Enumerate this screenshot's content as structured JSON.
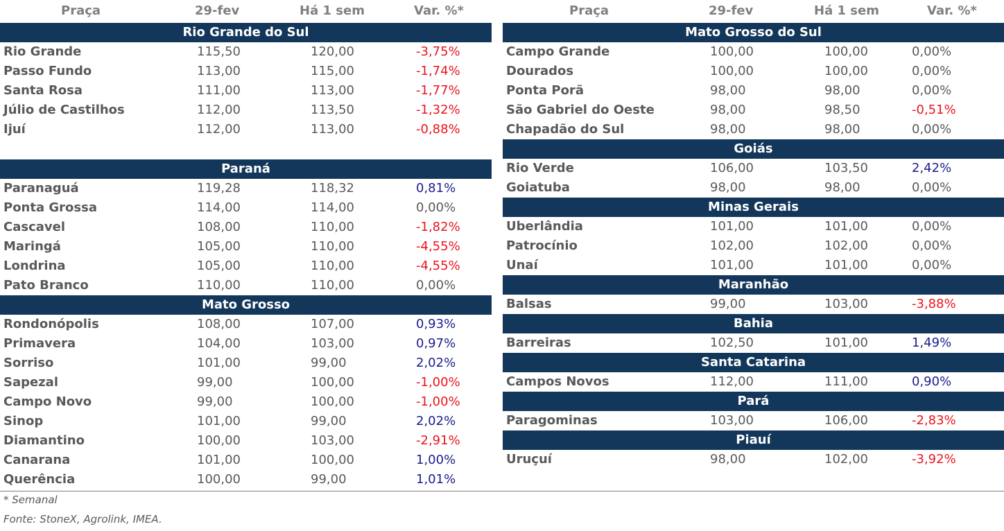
{
  "headers": {
    "place": "Praça",
    "current": "29-fev",
    "week_ago": "Há 1 sem",
    "var": "Var. %*"
  },
  "colors": {
    "band": "#13375a",
    "negative": "#e8141c",
    "positive": "#1b1b8f",
    "neutral": "#595959"
  },
  "left": {
    "rio_grande_do_sul": {
      "title": "Rio Grande do Sul",
      "rows": [
        [
          "Rio Grande",
          "115,50",
          "120,00",
          "-3,75%"
        ],
        [
          "Passo Fundo",
          "113,00",
          "115,00",
          "-1,74%"
        ],
        [
          "Santa Rosa",
          "111,00",
          "113,00",
          "-1,77%"
        ],
        [
          "Júlio de Castilhos",
          "112,00",
          "113,50",
          "-1,32%"
        ],
        [
          "Ijuí",
          "112,00",
          "113,00",
          "-0,88%"
        ]
      ]
    },
    "parana": {
      "title": "Paraná",
      "rows": [
        [
          "Paranaguá",
          "119,28",
          "118,32",
          "0,81%"
        ],
        [
          "Ponta Grossa",
          "114,00",
          "114,00",
          "0,00%"
        ],
        [
          "Cascavel",
          "108,00",
          "110,00",
          "-1,82%"
        ],
        [
          "Maringá",
          "105,00",
          "110,00",
          "-4,55%"
        ],
        [
          "Londrina",
          "105,00",
          "110,00",
          "-4,55%"
        ],
        [
          "Pato Branco",
          "110,00",
          "110,00",
          "0,00%"
        ]
      ]
    },
    "mato_grosso": {
      "title": "Mato Grosso",
      "rows": [
        [
          "Rondonópolis",
          "108,00",
          "107,00",
          "0,93%"
        ],
        [
          "Primavera",
          "104,00",
          "103,00",
          "0,97%"
        ],
        [
          "Sorriso",
          "101,00",
          "99,00",
          "2,02%"
        ],
        [
          "Sapezal",
          "99,00",
          "100,00",
          "-1,00%"
        ],
        [
          "Campo Novo",
          "99,00",
          "100,00",
          "-1,00%"
        ],
        [
          "Sinop",
          "101,00",
          "99,00",
          "2,02%"
        ],
        [
          "Diamantino",
          "100,00",
          "103,00",
          "-2,91%"
        ],
        [
          "Canarana",
          "101,00",
          "100,00",
          "1,00%"
        ],
        [
          "Querência",
          "100,00",
          "99,00",
          "1,01%"
        ]
      ]
    }
  },
  "right": {
    "mato_grosso_do_sul": {
      "title": "Mato Grosso do Sul",
      "rows": [
        [
          "Campo Grande",
          "100,00",
          "100,00",
          "0,00%"
        ],
        [
          "Dourados",
          "100,00",
          "100,00",
          "0,00%"
        ],
        [
          "Ponta Porã",
          "98,00",
          "98,00",
          "0,00%"
        ],
        [
          "São Gabriel do Oeste",
          "98,00",
          "98,50",
          "-0,51%"
        ],
        [
          "Chapadão do Sul",
          "98,00",
          "98,00",
          "0,00%"
        ]
      ]
    },
    "goias": {
      "title": "Goiás",
      "rows": [
        [
          "Rio Verde",
          "106,00",
          "103,50",
          "2,42%"
        ],
        [
          "Goiatuba",
          "98,00",
          "98,00",
          "0,00%"
        ]
      ]
    },
    "minas_gerais": {
      "title": "Minas Gerais",
      "rows": [
        [
          "Uberlândia",
          "101,00",
          "101,00",
          "0,00%"
        ],
        [
          "Patrocínio",
          "102,00",
          "102,00",
          "0,00%"
        ],
        [
          "Unaí",
          "101,00",
          "101,00",
          "0,00%"
        ]
      ]
    },
    "maranhao": {
      "title": "Maranhão",
      "rows": [
        [
          "Balsas",
          "99,00",
          "103,00",
          "-3,88%"
        ]
      ]
    },
    "bahia": {
      "title": "Bahia",
      "rows": [
        [
          "Barreiras",
          "102,50",
          "101,00",
          "1,49%"
        ]
      ]
    },
    "santa_catarina": {
      "title": "Santa Catarina",
      "rows": [
        [
          "Campos Novos",
          "112,00",
          "111,00",
          "0,90%"
        ]
      ]
    },
    "para": {
      "title": "Pará",
      "rows": [
        [
          "Paragominas",
          "103,00",
          "106,00",
          "-2,83%"
        ]
      ]
    },
    "piaui": {
      "title": "Piauí",
      "rows": [
        [
          "Uruçuí",
          "98,00",
          "102,00",
          "-3,92%"
        ]
      ]
    }
  },
  "footnote": "* Semanal",
  "source": "Fonte: StoneX, Agrolink, IMEA."
}
